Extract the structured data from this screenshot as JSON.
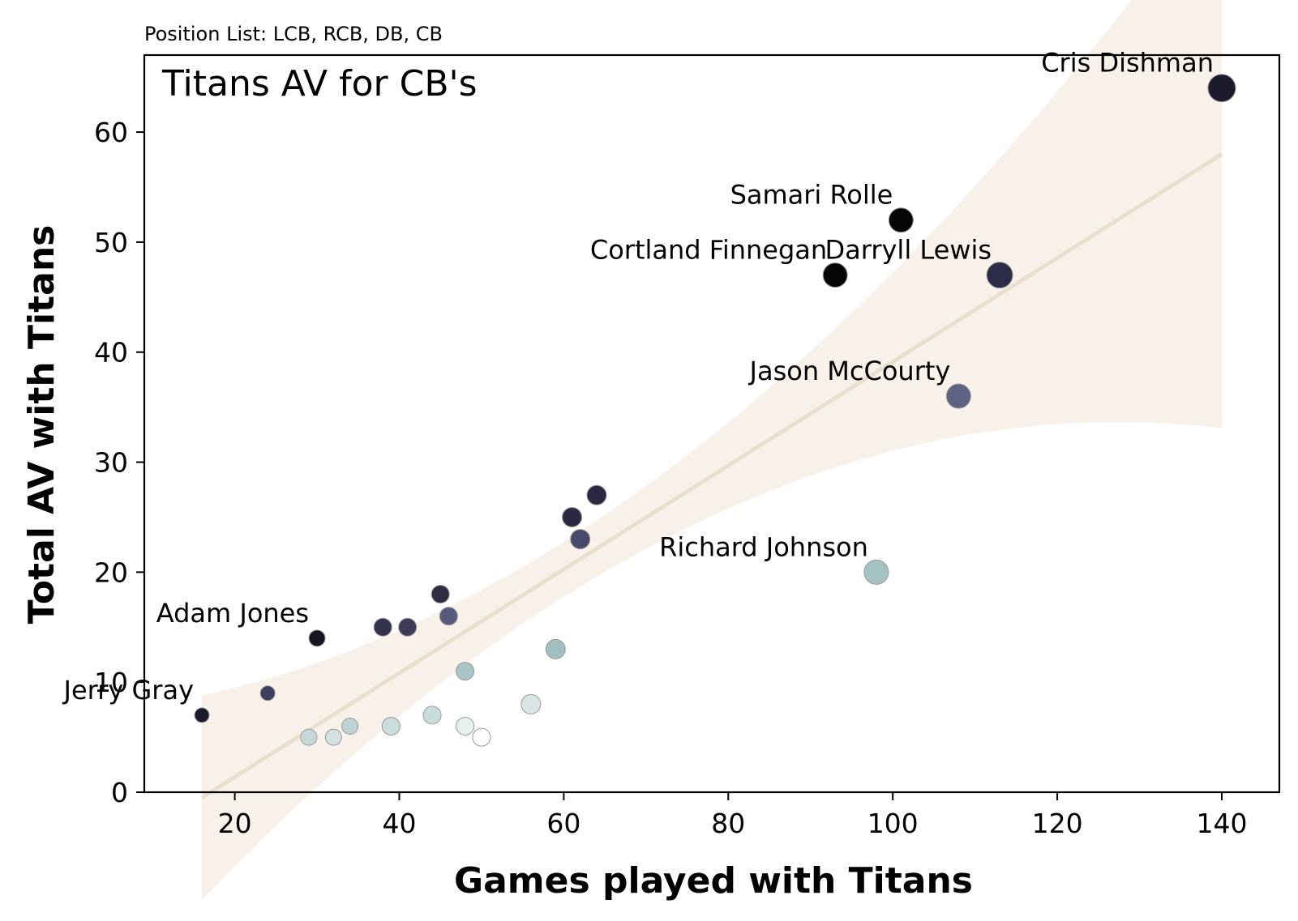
{
  "chart_data": {
    "type": "scatter",
    "subtitle": "Position List: LCB, RCB, DB, CB",
    "title": "Titans AV for CB's",
    "xlabel": "Games played with Titans",
    "ylabel": "Total AV with Titans",
    "xlim": [
      9,
      147
    ],
    "ylim": [
      0,
      67
    ],
    "xticks": [
      20,
      40,
      60,
      80,
      100,
      120,
      140
    ],
    "yticks": [
      0,
      10,
      20,
      30,
      40,
      50,
      60
    ],
    "grid": false,
    "regression": {
      "line": [
        [
          16,
          -0.5
        ],
        [
          140,
          58
        ]
      ],
      "band_color": "#f1e7da",
      "line_color": "#eadfcf"
    },
    "points": [
      {
        "x": 140,
        "y": 64,
        "label": "Cris Dishman",
        "color": "#1c1b2c",
        "size": 17
      },
      {
        "x": 101,
        "y": 52,
        "label": "Samari Rolle",
        "color": "#050507",
        "size": 15
      },
      {
        "x": 93,
        "y": 47,
        "label": "Cortland Finnegan",
        "color": "#050507",
        "size": 15
      },
      {
        "x": 113,
        "y": 47,
        "label": "Darryll Lewis",
        "color": "#2d2c48",
        "size": 16
      },
      {
        "x": 108,
        "y": 36,
        "label": "Jason McCourty",
        "color": "#5d6282",
        "size": 15
      },
      {
        "x": 98,
        "y": 20,
        "label": "Richard Johnson",
        "color": "#a5c2c3",
        "size": 15
      },
      {
        "x": 30,
        "y": 14,
        "label": "Adam Jones",
        "color": "#16151f",
        "size": 10
      },
      {
        "x": 16,
        "y": 7,
        "label": "Jerry Gray",
        "color": "#1c1b2c",
        "size": 9
      },
      {
        "x": 64,
        "y": 27,
        "label": "",
        "color": "#2a293f",
        "size": 12
      },
      {
        "x": 61,
        "y": 25,
        "label": "",
        "color": "#2a293f",
        "size": 12
      },
      {
        "x": 62,
        "y": 23,
        "label": "",
        "color": "#484a6c",
        "size": 12
      },
      {
        "x": 45,
        "y": 18,
        "label": "",
        "color": "#2f2e45",
        "size": 11
      },
      {
        "x": 46,
        "y": 16,
        "label": "",
        "color": "#575b7d",
        "size": 11
      },
      {
        "x": 38,
        "y": 15,
        "label": "",
        "color": "#34334d",
        "size": 11
      },
      {
        "x": 41,
        "y": 15,
        "label": "",
        "color": "#3c3b58",
        "size": 11
      },
      {
        "x": 24,
        "y": 9,
        "label": "",
        "color": "#3f3e5e",
        "size": 9
      },
      {
        "x": 59,
        "y": 13,
        "label": "",
        "color": "#a2bec0",
        "size": 12
      },
      {
        "x": 48,
        "y": 11,
        "label": "",
        "color": "#a8c4c5",
        "size": 11
      },
      {
        "x": 56,
        "y": 8,
        "label": "",
        "color": "#d8e5e4",
        "size": 12
      },
      {
        "x": 44,
        "y": 7,
        "label": "",
        "color": "#c9dcdc",
        "size": 11
      },
      {
        "x": 48,
        "y": 6,
        "label": "",
        "color": "#e8f0ef",
        "size": 11
      },
      {
        "x": 39,
        "y": 6,
        "label": "",
        "color": "#cadddc",
        "size": 11
      },
      {
        "x": 34,
        "y": 6,
        "label": "",
        "color": "#bdd3d2",
        "size": 10
      },
      {
        "x": 29,
        "y": 5,
        "label": "",
        "color": "#c6d9d8",
        "size": 10
      },
      {
        "x": 32,
        "y": 5,
        "label": "",
        "color": "#d3e2e1",
        "size": 10
      },
      {
        "x": 50,
        "y": 5,
        "label": "",
        "color": "#ffffff",
        "size": 11
      }
    ]
  }
}
